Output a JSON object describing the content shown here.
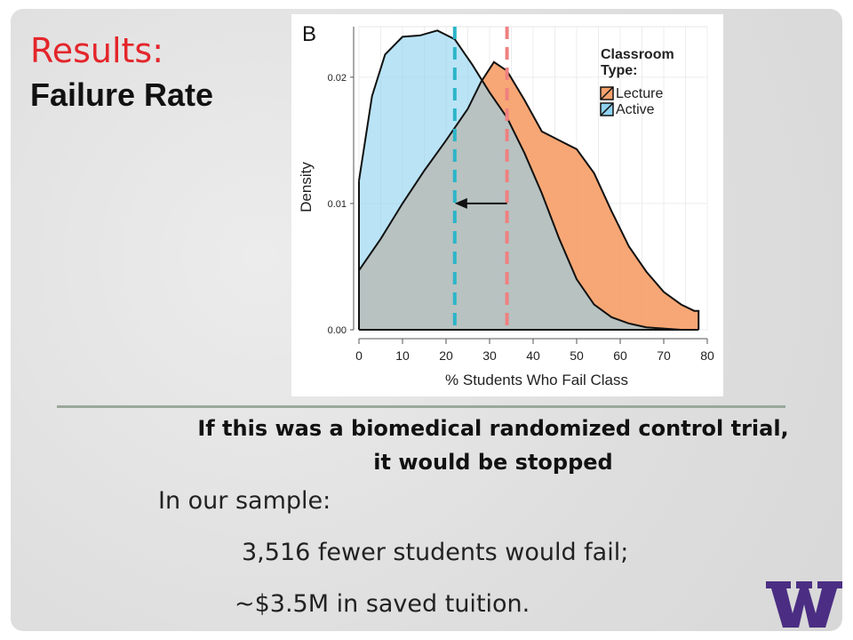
{
  "slide": {
    "title_red": "Results:",
    "title_black": "Failure Rate",
    "statement_line1": "If this was a biomedical randomized control trial,",
    "statement_line2": "it would be stopped",
    "sample_heading": "In our sample:",
    "sample_point1": "3,516 fewer students would fail;",
    "sample_point2": "~$3.5M in saved tuition.",
    "logo_name": "uw-w-logo",
    "colors": {
      "title_red": "#e3262b",
      "logo_purple": "#4b2e83"
    }
  },
  "chart_data": {
    "type": "area",
    "panel_label": "B",
    "xlabel": "% Students Who Fail Class",
    "ylabel": "Density",
    "xlim": [
      0,
      80
    ],
    "ylim": [
      0,
      0.024
    ],
    "x_ticks": [
      0,
      10,
      20,
      30,
      40,
      50,
      60,
      70,
      80
    ],
    "y_ticks": [
      0.0,
      0.01,
      0.02
    ],
    "y_tick_labels": [
      "0.00",
      "0.01",
      "0.02"
    ],
    "grid": true,
    "legend": {
      "title": "Classroom Type:",
      "position": "top-right",
      "entries": [
        {
          "name": "Lecture",
          "color": "#f7a26e"
        },
        {
          "name": "Active",
          "color": "#8fd3f1"
        }
      ]
    },
    "series": [
      {
        "name": "Lecture",
        "color": "#f7a26e",
        "points": [
          [
            0,
            0.0047
          ],
          [
            5,
            0.0072
          ],
          [
            10,
            0.01
          ],
          [
            15,
            0.0126
          ],
          [
            20,
            0.015
          ],
          [
            25,
            0.0175
          ],
          [
            28,
            0.0196
          ],
          [
            31,
            0.0212
          ],
          [
            34,
            0.0205
          ],
          [
            38,
            0.0182
          ],
          [
            42,
            0.0157
          ],
          [
            46,
            0.015
          ],
          [
            50,
            0.0143
          ],
          [
            54,
            0.0124
          ],
          [
            58,
            0.0094
          ],
          [
            62,
            0.0066
          ],
          [
            66,
            0.0046
          ],
          [
            70,
            0.003
          ],
          [
            74,
            0.002
          ],
          [
            77,
            0.0015
          ],
          [
            78,
            0.0015
          ]
        ]
      },
      {
        "name": "Active",
        "color": "#8fd3f1",
        "points": [
          [
            0,
            0.0118
          ],
          [
            3,
            0.0185
          ],
          [
            6,
            0.0218
          ],
          [
            10,
            0.0232
          ],
          [
            14,
            0.0233
          ],
          [
            18,
            0.0237
          ],
          [
            22,
            0.023
          ],
          [
            26,
            0.021
          ],
          [
            30,
            0.0188
          ],
          [
            34,
            0.0168
          ],
          [
            38,
            0.014
          ],
          [
            42,
            0.0108
          ],
          [
            46,
            0.0072
          ],
          [
            50,
            0.004
          ],
          [
            54,
            0.002
          ],
          [
            58,
            0.001
          ],
          [
            62,
            0.0005
          ],
          [
            66,
            0.0002
          ],
          [
            70,
            0.0001
          ],
          [
            74,
            0.0
          ]
        ]
      }
    ],
    "reference_lines": [
      {
        "series": "Active",
        "x": 22,
        "color": "#2bb5c9",
        "style": "dashed"
      },
      {
        "series": "Lecture",
        "x": 34,
        "color": "#ef8080",
        "style": "dashed"
      }
    ],
    "annotation_arrow": {
      "from_x": 34,
      "to_x": 22,
      "y": 0.01
    }
  }
}
